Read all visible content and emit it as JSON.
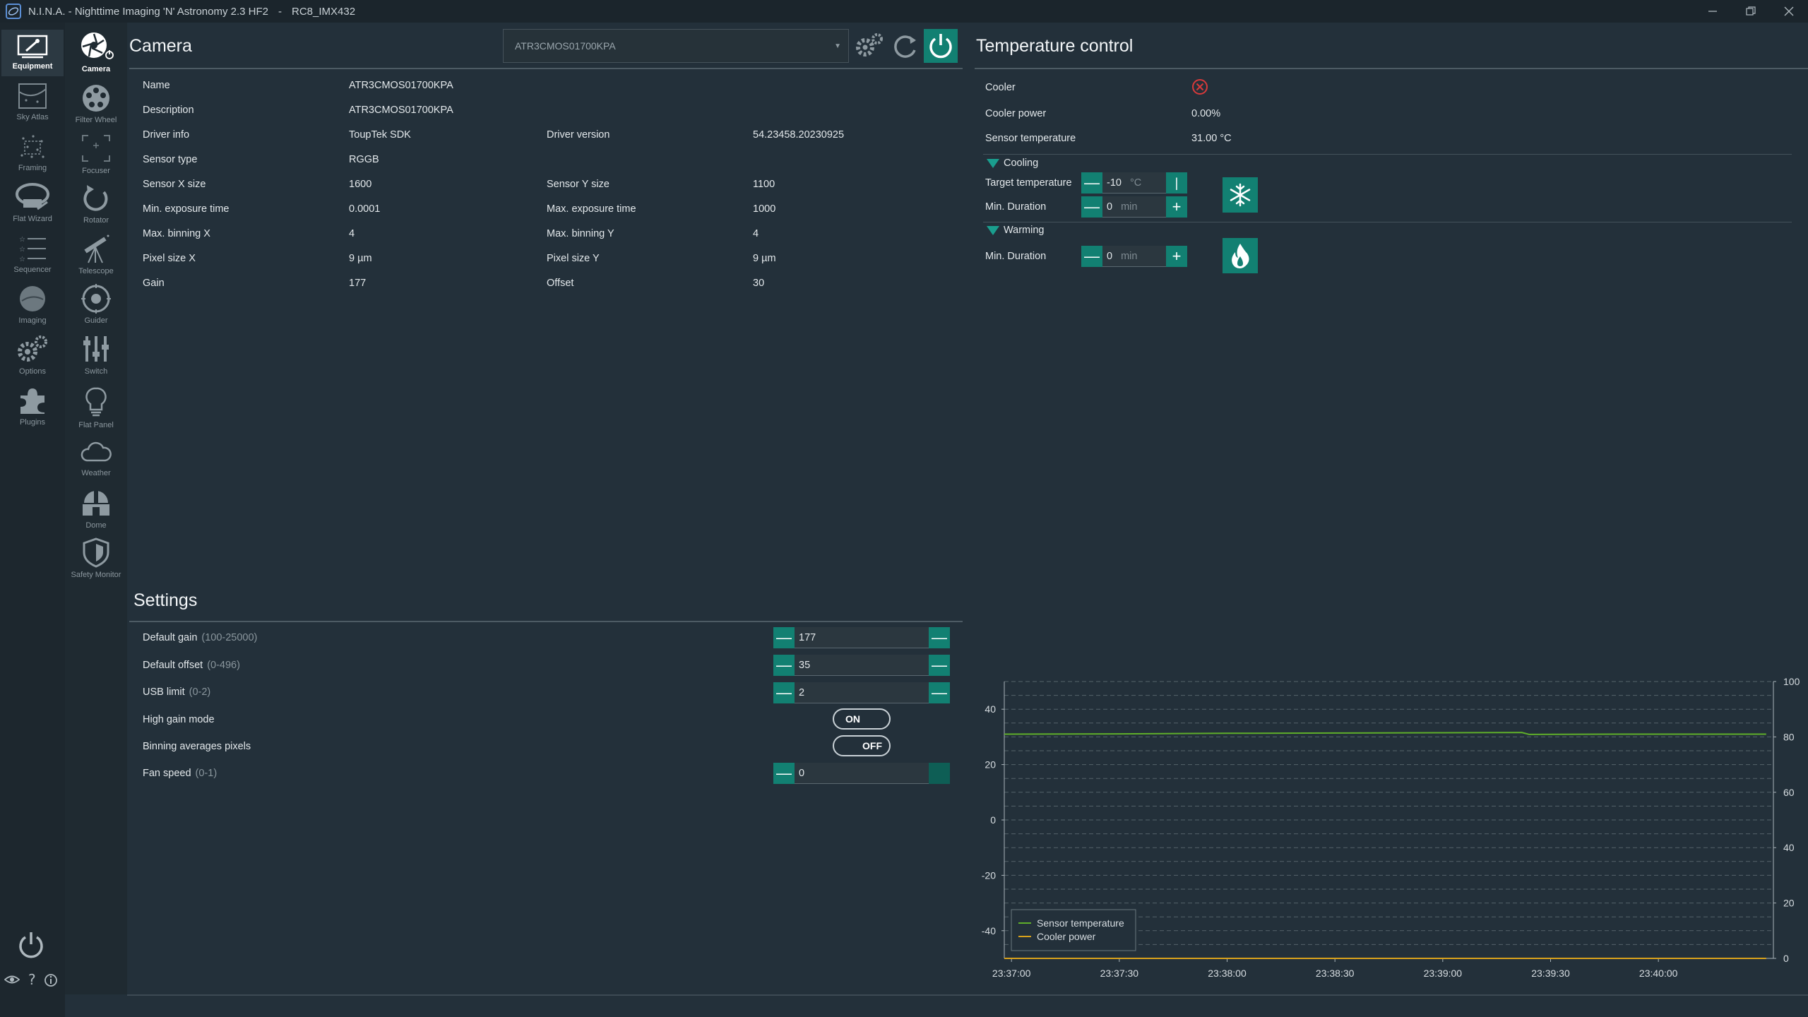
{
  "window": {
    "title": "N.I.N.A. - Nighttime Imaging 'N' Astronomy 2.3 HF2",
    "profile": "RC8_IMX432",
    "separator": "-"
  },
  "rail1": [
    {
      "label": "Equipment",
      "icon": "equipment-icon"
    },
    {
      "label": "Sky Atlas",
      "icon": "sky-atlas-icon"
    },
    {
      "label": "Framing",
      "icon": "framing-icon"
    },
    {
      "label": "Flat Wizard",
      "icon": "flat-wizard-icon"
    },
    {
      "label": "Sequencer",
      "icon": "sequencer-icon"
    },
    {
      "label": "Imaging",
      "icon": "imaging-icon"
    },
    {
      "label": "Options",
      "icon": "options-icon"
    },
    {
      "label": "Plugins",
      "icon": "plugins-icon"
    }
  ],
  "rail1_bottom": {
    "collapse": "<<"
  },
  "rail2": [
    {
      "label": "Camera",
      "icon": "camera-icon"
    },
    {
      "label": "Filter Wheel",
      "icon": "filter-wheel-icon"
    },
    {
      "label": "Focuser",
      "icon": "focuser-icon"
    },
    {
      "label": "Rotator",
      "icon": "rotator-icon"
    },
    {
      "label": "Telescope",
      "icon": "telescope-icon"
    },
    {
      "label": "Guider",
      "icon": "guider-icon"
    },
    {
      "label": "Switch",
      "icon": "switch-icon"
    },
    {
      "label": "Flat Panel",
      "icon": "flat-panel-icon"
    },
    {
      "label": "Weather",
      "icon": "weather-icon"
    },
    {
      "label": "Dome",
      "icon": "dome-icon"
    },
    {
      "label": "Safety Monitor",
      "icon": "safety-monitor-icon"
    }
  ],
  "camera": {
    "title": "Camera",
    "device_selected": "ATR3CMOS01700KPA",
    "info": {
      "name_label": "Name",
      "name_value": "ATR3CMOS01700KPA",
      "desc_label": "Description",
      "desc_value": "ATR3CMOS01700KPA",
      "driver_info_label": "Driver info",
      "driver_info_value": "ToupTek SDK",
      "driver_version_label": "Driver version",
      "driver_version_value": "54.23458.20230925",
      "sensor_type_label": "Sensor type",
      "sensor_type_value": "RGGB",
      "sensor_x_label": "Sensor X size",
      "sensor_x_value": "1600",
      "sensor_y_label": "Sensor Y size",
      "sensor_y_value": "1100",
      "min_exp_label": "Min. exposure time",
      "min_exp_value": "0.0001",
      "max_exp_label": "Max. exposure time",
      "max_exp_value": "1000",
      "max_bin_x_label": "Max. binning X",
      "max_bin_x_value": "4",
      "max_bin_y_label": "Max. binning Y",
      "max_bin_y_value": "4",
      "pixel_x_label": "Pixel size X",
      "pixel_x_value": "9 µm",
      "pixel_y_label": "Pixel size Y",
      "pixel_y_value": "9 µm",
      "gain_label": "Gain",
      "gain_value": "177",
      "offset_label": "Offset",
      "offset_value": "30"
    }
  },
  "settings": {
    "title": "Settings",
    "default_gain_label": "Default gain",
    "default_gain_range": "(100-25000)",
    "default_gain_value": "177",
    "default_offset_label": "Default offset",
    "default_offset_range": "(0-496)",
    "default_offset_value": "35",
    "usb_limit_label": "USB limit",
    "usb_limit_range": "(0-2)",
    "usb_limit_value": "2",
    "high_gain_label": "High gain mode",
    "high_gain_state": "ON",
    "binning_avg_label": "Binning averages pixels",
    "binning_avg_state": "OFF",
    "fan_speed_label": "Fan speed",
    "fan_speed_range": "(0-1)",
    "fan_speed_value": "0"
  },
  "temperature": {
    "title": "Temperature control",
    "cooler_label": "Cooler",
    "cooler_power_label": "Cooler power",
    "cooler_power_value": "0.00%",
    "sensor_temp_label": "Sensor temperature",
    "sensor_temp_value": "31.00 °C",
    "cooling_header": "Cooling",
    "target_temp_label": "Target temperature",
    "target_temp_value": "-10",
    "target_temp_unit": "°C",
    "cool_min_duration_label": "Min. Duration",
    "cool_min_duration_value": "0",
    "cool_min_duration_unit": "min",
    "warming_header": "Warming",
    "warm_min_duration_label": "Min. Duration",
    "warm_min_duration_value": "0",
    "warm_min_duration_unit": "min"
  },
  "chart_data": {
    "type": "line",
    "title": "",
    "x": [
      "23:37:00",
      "23:37:30",
      "23:38:00",
      "23:38:30",
      "23:39:00",
      "23:39:30",
      "23:40:00"
    ],
    "y_left_ticks": [
      40,
      20,
      0,
      -20,
      -40
    ],
    "y_left_range": [
      -50,
      50
    ],
    "y_right_ticks": [
      100,
      80,
      60,
      40,
      20,
      0
    ],
    "y_right_range": [
      0,
      100
    ],
    "grid": true,
    "legend": "bottom-left",
    "series": [
      {
        "name": "Sensor temperature",
        "color": "#5fae2a",
        "axis": "left",
        "points": [
          [
            "23:36:58",
            31.0
          ],
          [
            "23:37:30",
            31.1
          ],
          [
            "23:38:00",
            31.3
          ],
          [
            "23:38:30",
            31.4
          ],
          [
            "23:39:00",
            31.5
          ],
          [
            "23:39:22",
            31.6
          ],
          [
            "23:39:24",
            30.9
          ],
          [
            "23:39:50",
            31.0
          ],
          [
            "23:40:30",
            31.0
          ]
        ]
      },
      {
        "name": "Cooler power",
        "color": "#d9a21b",
        "axis": "right",
        "points": [
          [
            "23:36:58",
            0
          ],
          [
            "23:40:30",
            0
          ]
        ]
      }
    ]
  }
}
